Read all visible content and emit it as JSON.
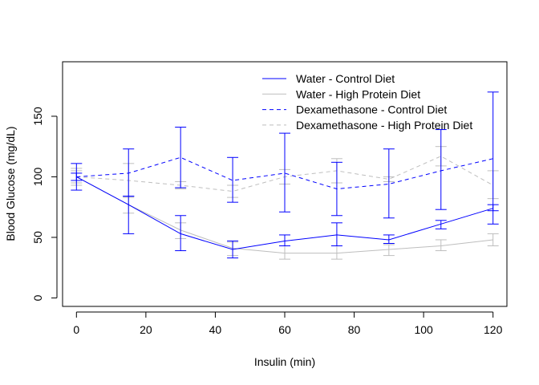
{
  "chart_data": {
    "type": "line",
    "title": "",
    "xlabel": "Insulin (min)",
    "ylabel": "Blood Glucose (mg/dL)",
    "xlim": [
      -4,
      124
    ],
    "ylim": [
      -7,
      195
    ],
    "x_ticks": [
      0,
      20,
      40,
      60,
      80,
      100,
      120
    ],
    "y_ticks": [
      0,
      50,
      100,
      150
    ],
    "x_tick_labels": [
      "0",
      "20",
      "40",
      "60",
      "80",
      "100",
      "120"
    ],
    "y_tick_labels": [
      "0",
      "50",
      "100",
      "150"
    ],
    "grid": false,
    "legend_position": "top-right",
    "x": [
      0,
      15,
      30,
      45,
      60,
      75,
      90,
      105,
      120
    ],
    "series": [
      {
        "name": "Water - Control Diet",
        "color": "#0000ff",
        "dash": "solid",
        "values": [
          100,
          77,
          53,
          40,
          47,
          52,
          48,
          61,
          74
        ],
        "err_low": [
          89,
          53,
          39,
          33,
          43,
          43,
          45,
          57,
          61
        ],
        "err_high": [
          111,
          84,
          68,
          47,
          52,
          62,
          52,
          64,
          77
        ]
      },
      {
        "name": "Water - High Protein Diet",
        "color": "#bebebe",
        "dash": "solid",
        "values": [
          100,
          77,
          56,
          41,
          37,
          37,
          40,
          43,
          48
        ],
        "err_low": [
          95,
          70,
          49,
          35,
          32,
          32,
          35,
          39,
          43
        ],
        "err_high": [
          105,
          84,
          62,
          46,
          43,
          43,
          44,
          48,
          53
        ]
      },
      {
        "name": "Dexamethasone - Control Diet",
        "color": "#0000ff",
        "dash": "dashed",
        "values": [
          100,
          103,
          116,
          97,
          103,
          90,
          94,
          105,
          115
        ],
        "err_low": [
          97,
          84,
          91,
          79,
          71,
          68,
          66,
          73,
          72
        ],
        "err_high": [
          103,
          123,
          141,
          116,
          136,
          112,
          123,
          139,
          170
        ]
      },
      {
        "name": "Dexamethasone - High Protein Diet",
        "color": "#bebebe",
        "dash": "dashed",
        "values": [
          100,
          97,
          93,
          88,
          100,
          105,
          98,
          117,
          93
        ],
        "err_low": [
          93,
          83,
          90,
          83,
          94,
          95,
          96,
          109,
          82
        ],
        "err_high": [
          107,
          111,
          96,
          93,
          106,
          115,
          100,
          125,
          105
        ]
      }
    ]
  }
}
